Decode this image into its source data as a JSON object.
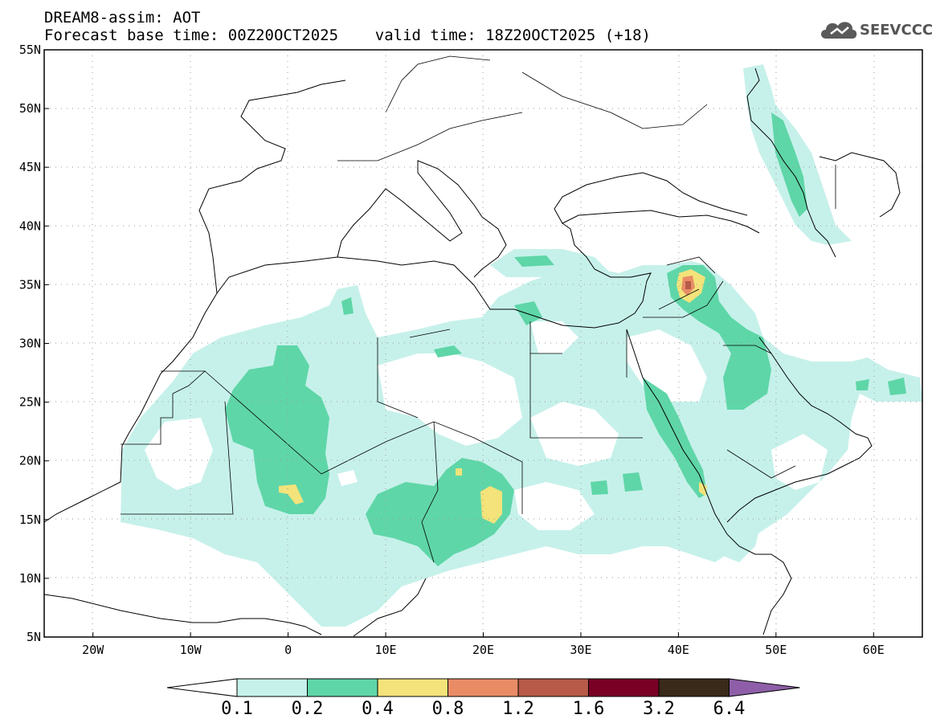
{
  "header": {
    "line1": "DREAM8-assim: AOT",
    "line2": "Forecast base time: 00Z20OCT2025    valid time: 18Z20OCT2025 (+18)",
    "logo_text": "SEEVCCC"
  },
  "map": {
    "lat_labels": [
      "55N",
      "50N",
      "45N",
      "40N",
      "35N",
      "30N",
      "25N",
      "20N",
      "15N",
      "10N",
      "5N"
    ],
    "lon_labels": [
      "20W",
      "10W",
      "0",
      "10E",
      "20E",
      "30E",
      "40E",
      "50E",
      "60E"
    ],
    "lon_range": [
      -25,
      65
    ],
    "lat_range": [
      5,
      55
    ]
  },
  "colorbar": {
    "labels": [
      "0.1",
      "0.2",
      "0.4",
      "0.8",
      "1.2",
      "1.6",
      "3.2",
      "6.4"
    ],
    "colors": [
      "#c6f1ea",
      "#5fd6a8",
      "#f3e37a",
      "#e98c66",
      "#b75a48",
      "#7a0026",
      "#3a2a1a",
      "#8e5fa8"
    ]
  }
}
